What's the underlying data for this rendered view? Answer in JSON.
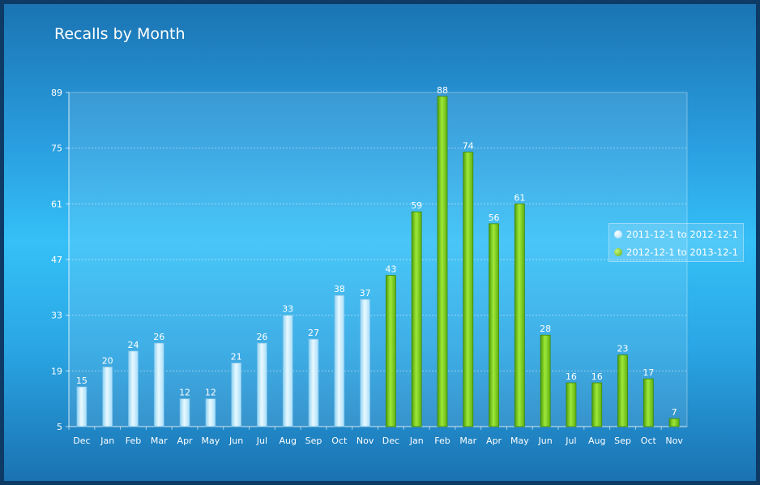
{
  "chart_data": {
    "type": "bar",
    "title": "Recalls by Month",
    "xlabel": "",
    "ylabel": "",
    "ylim": [
      5,
      89
    ],
    "yticks": [
      5,
      19,
      33,
      47,
      61,
      75,
      89
    ],
    "grid": true,
    "legend_position": "right",
    "categories": [
      "Dec",
      "Jan",
      "Feb",
      "Mar",
      "Apr",
      "May",
      "Jun",
      "Jul",
      "Aug",
      "Sep",
      "Oct",
      "Nov",
      "Dec",
      "Jan",
      "Feb",
      "Mar",
      "Apr",
      "May",
      "Jun",
      "Jul",
      "Aug",
      "Sep",
      "Oct",
      "Nov"
    ],
    "series": [
      {
        "name": "2011-12-1 to 2012-12-1",
        "color": "#bfe9fb",
        "values": [
          15,
          20,
          24,
          26,
          12,
          12,
          21,
          26,
          33,
          27,
          38,
          37,
          null,
          null,
          null,
          null,
          null,
          null,
          null,
          null,
          null,
          null,
          null,
          null
        ]
      },
      {
        "name": "2012-12-1 to 2013-12-1",
        "color": "#6cc418",
        "values": [
          null,
          null,
          null,
          null,
          null,
          null,
          null,
          null,
          null,
          null,
          null,
          null,
          43,
          59,
          88,
          74,
          56,
          61,
          28,
          16,
          16,
          23,
          17,
          7
        ]
      }
    ]
  }
}
